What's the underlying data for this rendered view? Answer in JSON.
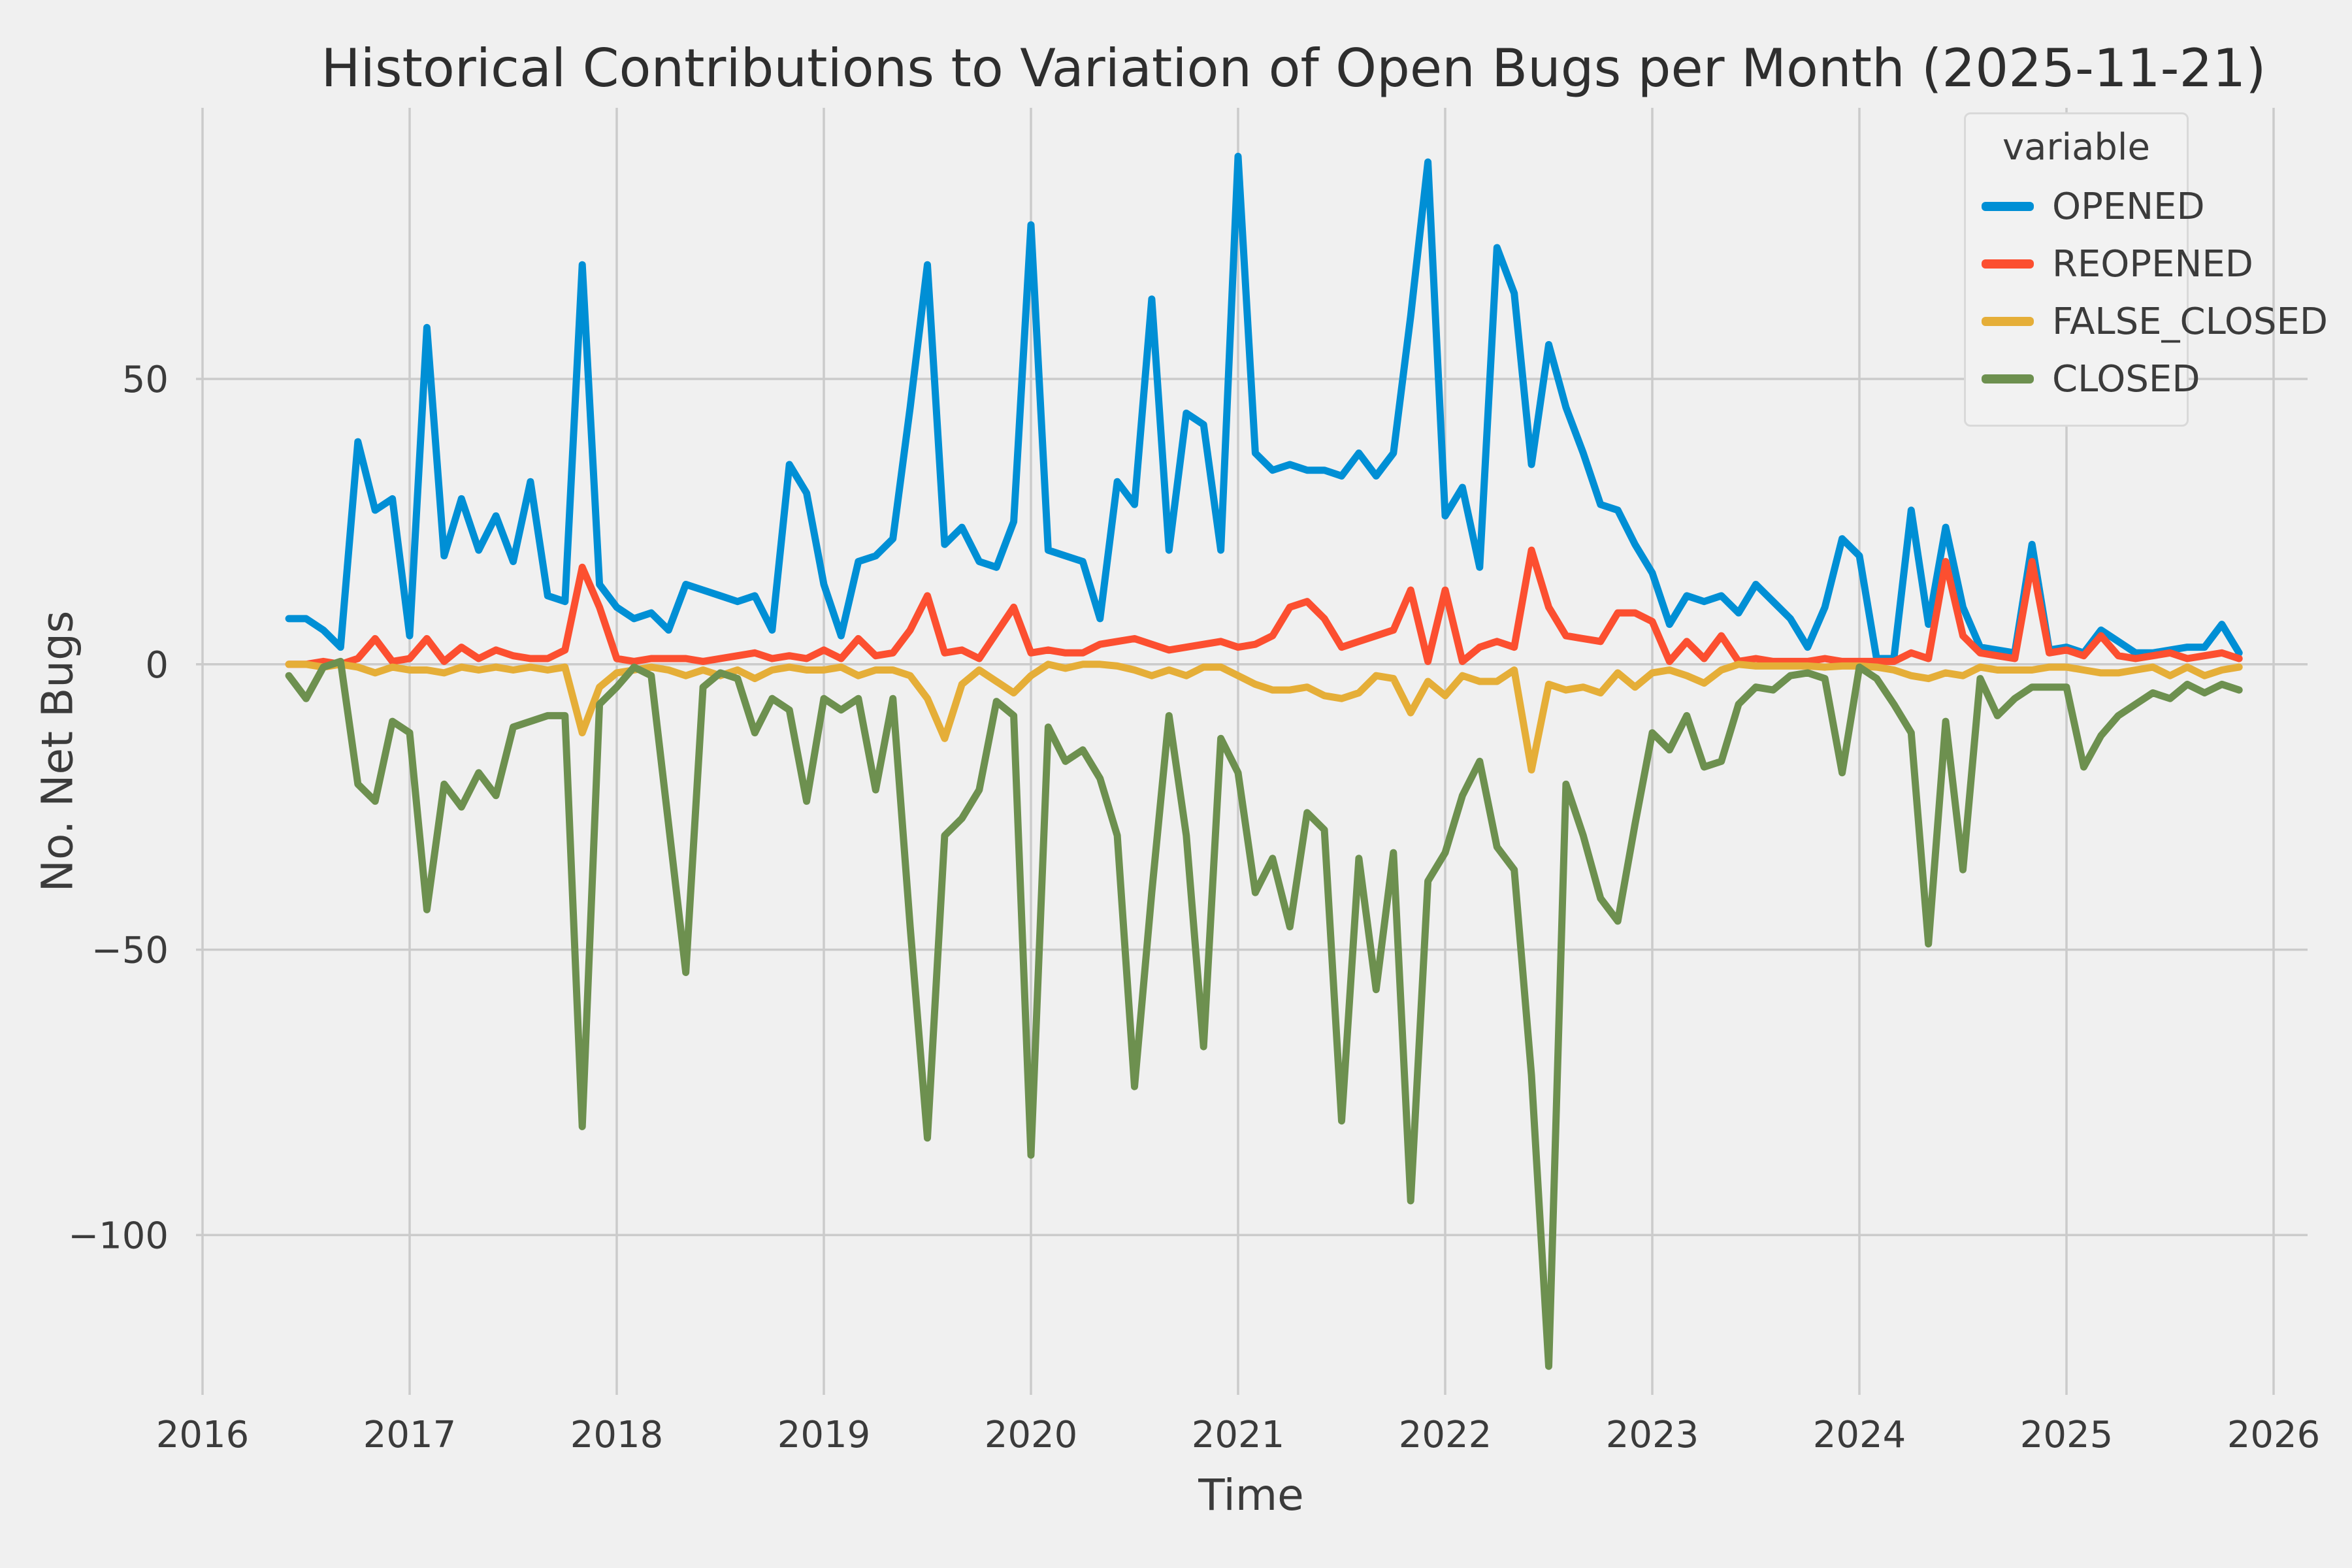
{
  "chart_data": {
    "type": "line",
    "title": "Historical Contributions to Variation of Open Bugs per Month (2025-11-21)",
    "xlabel": "Time",
    "ylabel": "No. Net Bugs",
    "legend_title": "variable",
    "legend_position": "upper right",
    "grid": true,
    "background_color": "#f0f0f0",
    "grid_color": "#cbcbcb",
    "x_ticks": [
      2016,
      2017,
      2018,
      2019,
      2020,
      2021,
      2022,
      2023,
      2024,
      2025,
      2026
    ],
    "y_ticks": [
      50,
      0,
      -50,
      -100
    ],
    "xlim": [
      2015.97,
      2026.17
    ],
    "ylim": [
      -128,
      97.5
    ],
    "x": [
      "2016-06",
      "2016-07",
      "2016-08",
      "2016-09",
      "2016-10",
      "2016-11",
      "2016-12",
      "2017-01",
      "2017-02",
      "2017-03",
      "2017-04",
      "2017-05",
      "2017-06",
      "2017-07",
      "2017-08",
      "2017-09",
      "2017-10",
      "2017-11",
      "2017-12",
      "2018-01",
      "2018-02",
      "2018-03",
      "2018-04",
      "2018-05",
      "2018-06",
      "2018-07",
      "2018-08",
      "2018-09",
      "2018-10",
      "2018-11",
      "2018-12",
      "2019-01",
      "2019-02",
      "2019-03",
      "2019-04",
      "2019-05",
      "2019-06",
      "2019-07",
      "2019-08",
      "2019-09",
      "2019-10",
      "2019-11",
      "2019-12",
      "2020-01",
      "2020-02",
      "2020-03",
      "2020-04",
      "2020-05",
      "2020-06",
      "2020-07",
      "2020-08",
      "2020-09",
      "2020-10",
      "2020-11",
      "2020-12",
      "2021-01",
      "2021-02",
      "2021-03",
      "2021-04",
      "2021-05",
      "2021-06",
      "2021-07",
      "2021-08",
      "2021-09",
      "2021-10",
      "2021-11",
      "2021-12",
      "2022-01",
      "2022-02",
      "2022-03",
      "2022-04",
      "2022-05",
      "2022-06",
      "2022-07",
      "2022-08",
      "2022-09",
      "2022-10",
      "2022-11",
      "2022-12",
      "2023-01",
      "2023-02",
      "2023-03",
      "2023-04",
      "2023-05",
      "2023-06",
      "2023-07",
      "2023-08",
      "2023-09",
      "2023-10",
      "2023-11",
      "2023-12",
      "2024-01",
      "2024-02",
      "2024-03",
      "2024-04",
      "2024-05",
      "2024-06",
      "2024-07",
      "2024-08",
      "2024-09",
      "2024-10",
      "2024-11",
      "2024-12",
      "2025-01",
      "2025-02",
      "2025-03",
      "2025-04",
      "2025-05",
      "2025-06",
      "2025-07",
      "2025-08",
      "2025-09",
      "2025-10",
      "2025-11"
    ],
    "series": [
      {
        "name": "OPENED",
        "color": "#008fd5",
        "values": [
          8,
          8,
          6,
          3,
          39,
          27,
          29,
          5,
          59,
          19,
          29,
          20,
          26,
          18,
          32,
          12,
          11,
          70,
          14,
          10,
          8,
          9,
          6,
          14,
          13,
          12,
          11,
          12,
          6,
          35,
          30,
          14,
          5,
          18,
          19,
          22,
          45,
          70,
          21,
          24,
          18,
          17,
          25,
          77,
          20,
          19,
          18,
          8,
          32,
          28,
          64,
          20,
          44,
          42,
          20,
          89,
          37,
          34,
          35,
          34,
          34,
          33,
          37,
          33,
          37,
          61,
          88,
          26,
          31,
          17,
          73,
          65,
          35,
          56,
          45,
          37,
          28,
          27,
          21,
          16,
          7,
          12,
          11,
          12,
          9,
          14,
          11,
          8,
          3,
          10,
          22,
          19,
          1,
          1,
          27,
          7,
          24,
          10,
          3,
          2.5,
          2,
          21,
          2.5,
          3,
          2,
          6,
          4,
          2,
          2,
          2.5,
          3,
          3,
          7,
          2
        ]
      },
      {
        "name": "REOPENED",
        "color": "#fc4f30",
        "values": [
          0,
          0,
          0.5,
          0,
          1,
          4.5,
          0.5,
          1,
          4.5,
          0.5,
          3,
          1,
          2.5,
          1.5,
          1,
          1,
          2.5,
          17,
          10,
          1,
          0.5,
          1,
          1,
          1,
          0.5,
          1,
          1.5,
          2,
          1,
          1.5,
          1,
          2.5,
          1,
          4.5,
          1.5,
          2,
          6,
          12,
          2,
          2.5,
          1,
          5.5,
          10,
          2,
          2.5,
          2,
          2,
          3.5,
          4,
          4.5,
          3.5,
          2.5,
          3,
          3.5,
          4,
          3,
          3.5,
          5,
          10,
          11,
          8,
          3,
          4,
          5,
          6,
          13,
          0.5,
          13,
          0.5,
          3,
          4,
          3,
          20,
          10,
          5,
          4.5,
          4,
          9,
          9,
          7.5,
          0.5,
          4,
          1,
          5,
          0.5,
          1,
          0.5,
          0.5,
          0.5,
          1,
          0.5,
          0.5,
          0.5,
          0.5,
          2,
          1,
          18,
          5,
          2,
          1.5,
          1,
          18,
          2,
          2.5,
          1.5,
          5,
          1.5,
          1,
          1.5,
          2,
          1,
          1.5,
          2,
          1
        ]
      },
      {
        "name": "FALSE_CLOSED",
        "color": "#e5ae38",
        "values": [
          0,
          0,
          -0.5,
          0,
          -0.5,
          -1.5,
          -0.5,
          -1,
          -1,
          -1.5,
          -0.5,
          -1,
          -0.5,
          -1,
          -0.5,
          -1,
          -0.5,
          -12,
          -4,
          -1.5,
          -1,
          -0.5,
          -1,
          -2,
          -1,
          -2,
          -1,
          -2.5,
          -1,
          -0.5,
          -1,
          -1,
          -0.5,
          -2,
          -1,
          -1,
          -2,
          -6,
          -13,
          -3.5,
          -1,
          -3,
          -5,
          -2,
          0,
          -0.7,
          0,
          0,
          -0.3,
          -1,
          -2,
          -1,
          -2,
          -0.5,
          -0.5,
          -2,
          -3.5,
          -4.5,
          -4.5,
          -4,
          -5.5,
          -6,
          -5,
          -2,
          -2.5,
          -8.5,
          -3,
          -5.5,
          -2,
          -3,
          -3,
          -1,
          -18.5,
          -3.5,
          -4.5,
          -4,
          -5,
          -1.5,
          -4,
          -1.5,
          -1,
          -2,
          -3.3,
          -1,
          0,
          -0.3,
          -0.3,
          -0.3,
          -0.3,
          -0.5,
          -0.3,
          -0.3,
          -0.5,
          -1,
          -2,
          -2.5,
          -1.5,
          -2,
          -0.5,
          -1,
          -1,
          -1,
          -0.5,
          -0.5,
          -1,
          -1.5,
          -1.5,
          -1,
          -0.5,
          -2,
          -0.5,
          -2,
          -1,
          -0.5
        ]
      },
      {
        "name": "CLOSED",
        "color": "#6d904f",
        "values": [
          -2,
          -6,
          -0.5,
          0.5,
          -21,
          -24,
          -10,
          -12,
          -43,
          -21,
          -25,
          -19,
          -23,
          -11,
          -10,
          -9,
          -9,
          -81,
          -7,
          -4,
          -0.5,
          -2,
          -28,
          -54,
          -4,
          -1.5,
          -2.5,
          -12,
          -6,
          -8,
          -24,
          -6,
          -8,
          -6,
          -22,
          -6,
          -46,
          -83,
          -30,
          -27,
          -22,
          -6.5,
          -9,
          -86,
          -11,
          -17,
          -15,
          -20,
          -30,
          -74,
          -40,
          -9,
          -30,
          -67,
          -13,
          -19,
          -40,
          -34,
          -46,
          -26,
          -29,
          -80,
          -34,
          -57,
          -33,
          -94,
          -38,
          -33,
          -23,
          -17,
          -32,
          -36,
          -72,
          -123,
          -21,
          -30,
          -41,
          -45,
          -28,
          -12,
          -15,
          -9,
          -18,
          -17,
          -7,
          -4,
          -4.5,
          -2,
          -1.5,
          -2.5,
          -19,
          -0.5,
          -2.5,
          -7,
          -12,
          -49,
          -10,
          -36,
          -2.5,
          -9,
          -6,
          -4,
          -4,
          -4,
          -18,
          -12.5,
          -9,
          -7,
          -5,
          -6,
          -3.5,
          -5,
          -3.5,
          -4.5
        ]
      }
    ]
  }
}
